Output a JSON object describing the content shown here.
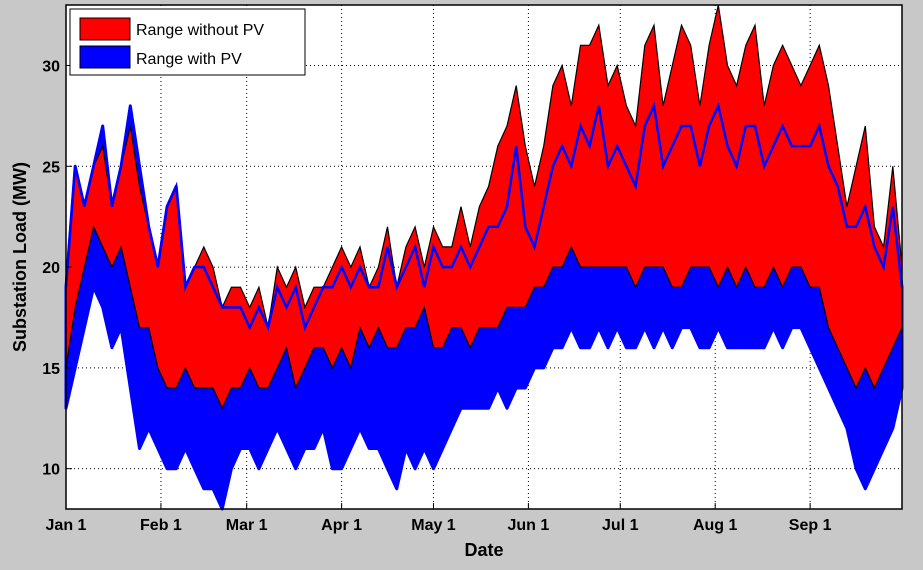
{
  "chart_data": {
    "type": "area",
    "title": "",
    "xlabel": "Date",
    "ylabel": "Substation Load (MW)",
    "x_tick_labels": [
      "Jan 1",
      "Feb 1",
      "Mar 1",
      "Apr 1",
      "May 1",
      "Jun 1",
      "Jul 1",
      "Aug 1",
      "Sep 1"
    ],
    "x_tick_days": [
      0,
      31,
      59,
      90,
      120,
      151,
      181,
      212,
      243
    ],
    "xlim_days": [
      0,
      273
    ],
    "y_ticks": [
      10,
      15,
      20,
      25,
      30
    ],
    "y_tick_labels": [
      "10",
      "15",
      "20",
      "25",
      "30"
    ],
    "ylim": [
      8,
      33
    ],
    "grid": true,
    "legend_position": "top-left",
    "colors": {
      "range_without_pv": "#ff0000",
      "range_with_pv": "#0000ff",
      "outline": "#000000",
      "plot_background": "#ffffff",
      "figure_background": "#c8c8c8"
    },
    "series": [
      {
        "name": "Range without PV",
        "color": "#ff0000",
        "x_days": [
          0,
          3,
          6,
          9,
          12,
          15,
          18,
          21,
          24,
          27,
          30,
          33,
          36,
          39,
          42,
          45,
          48,
          51,
          54,
          57,
          60,
          63,
          66,
          69,
          72,
          75,
          78,
          81,
          84,
          87,
          90,
          93,
          96,
          99,
          102,
          105,
          108,
          111,
          114,
          117,
          120,
          123,
          126,
          129,
          132,
          135,
          138,
          141,
          144,
          147,
          150,
          153,
          156,
          159,
          162,
          165,
          168,
          171,
          174,
          177,
          180,
          183,
          186,
          189,
          192,
          195,
          198,
          201,
          204,
          207,
          210,
          213,
          216,
          219,
          222,
          225,
          228,
          231,
          234,
          237,
          240,
          243,
          246,
          249,
          252,
          255,
          258,
          261,
          264,
          267,
          270,
          273
        ],
        "upper": [
          19,
          25,
          23,
          25,
          26,
          23,
          25,
          27,
          24,
          22,
          20,
          23,
          24,
          19,
          20,
          21,
          20,
          18,
          19,
          19,
          18,
          19,
          17,
          20,
          19,
          20,
          18,
          19,
          19,
          20,
          21,
          20,
          21,
          19,
          20,
          22,
          19,
          21,
          22,
          20,
          22,
          21,
          21,
          23,
          21,
          23,
          24,
          26,
          27,
          29,
          26,
          24,
          26,
          29,
          30,
          28,
          31,
          31,
          32,
          29,
          30,
          28,
          27,
          31,
          32,
          28,
          30,
          32,
          31,
          28,
          31,
          33,
          30,
          29,
          31,
          32,
          28,
          30,
          31,
          30,
          29,
          30,
          31,
          29,
          26,
          23,
          25,
          27,
          22,
          21,
          25,
          20
        ],
        "lower": [
          15,
          18,
          20,
          22,
          21,
          20,
          21,
          19,
          17,
          17,
          15,
          14,
          14,
          15,
          14,
          14,
          14,
          13,
          14,
          14,
          15,
          14,
          14,
          15,
          16,
          14,
          15,
          16,
          16,
          15,
          16,
          15,
          17,
          16,
          17,
          16,
          16,
          17,
          17,
          18,
          16,
          16,
          17,
          17,
          16,
          17,
          17,
          17,
          18,
          18,
          18,
          19,
          19,
          20,
          20,
          21,
          20,
          20,
          20,
          20,
          20,
          20,
          19,
          20,
          20,
          20,
          19,
          19,
          20,
          20,
          20,
          19,
          20,
          19,
          20,
          19,
          19,
          20,
          19,
          20,
          20,
          19,
          19,
          17,
          16,
          15,
          14,
          15,
          14,
          15,
          16,
          17
        ]
      },
      {
        "name": "Range with PV",
        "color": "#0000ff",
        "x_days": [
          0,
          3,
          6,
          9,
          12,
          15,
          18,
          21,
          24,
          27,
          30,
          33,
          36,
          39,
          42,
          45,
          48,
          51,
          54,
          57,
          60,
          63,
          66,
          69,
          72,
          75,
          78,
          81,
          84,
          87,
          90,
          93,
          96,
          99,
          102,
          105,
          108,
          111,
          114,
          117,
          120,
          123,
          126,
          129,
          132,
          135,
          138,
          141,
          144,
          147,
          150,
          153,
          156,
          159,
          162,
          165,
          168,
          171,
          174,
          177,
          180,
          183,
          186,
          189,
          192,
          195,
          198,
          201,
          204,
          207,
          210,
          213,
          216,
          219,
          222,
          225,
          228,
          231,
          234,
          237,
          240,
          243,
          246,
          249,
          252,
          255,
          258,
          261,
          264,
          267,
          270,
          273
        ],
        "upper": [
          19,
          25,
          23,
          25,
          27,
          23,
          25,
          28,
          25,
          22,
          20,
          23,
          24,
          19,
          20,
          20,
          19,
          18,
          18,
          18,
          17,
          18,
          17,
          19,
          18,
          19,
          17,
          18,
          19,
          19,
          20,
          19,
          20,
          19,
          19,
          21,
          19,
          20,
          21,
          19,
          21,
          20,
          20,
          21,
          20,
          21,
          22,
          22,
          23,
          26,
          22,
          21,
          23,
          25,
          26,
          25,
          27,
          26,
          28,
          25,
          26,
          25,
          24,
          27,
          28,
          25,
          26,
          27,
          27,
          25,
          27,
          28,
          26,
          25,
          27,
          27,
          25,
          26,
          27,
          26,
          26,
          26,
          27,
          25,
          24,
          22,
          22,
          23,
          21,
          20,
          23,
          19
        ],
        "lower": [
          13,
          15,
          17,
          19,
          18,
          16,
          17,
          14,
          11,
          12,
          11,
          10,
          10,
          11,
          10,
          9,
          9,
          8,
          10,
          11,
          11,
          10,
          11,
          12,
          11,
          10,
          11,
          11,
          12,
          10,
          10,
          11,
          12,
          11,
          11,
          10,
          9,
          11,
          10,
          11,
          10,
          11,
          12,
          13,
          13,
          13,
          13,
          14,
          13,
          14,
          14,
          15,
          15,
          16,
          16,
          17,
          16,
          16,
          17,
          16,
          17,
          16,
          16,
          17,
          16,
          17,
          16,
          17,
          17,
          16,
          16,
          17,
          16,
          16,
          16,
          16,
          16,
          17,
          16,
          17,
          17,
          16,
          15,
          14,
          13,
          12,
          10,
          9,
          10,
          11,
          12,
          14
        ]
      }
    ]
  }
}
